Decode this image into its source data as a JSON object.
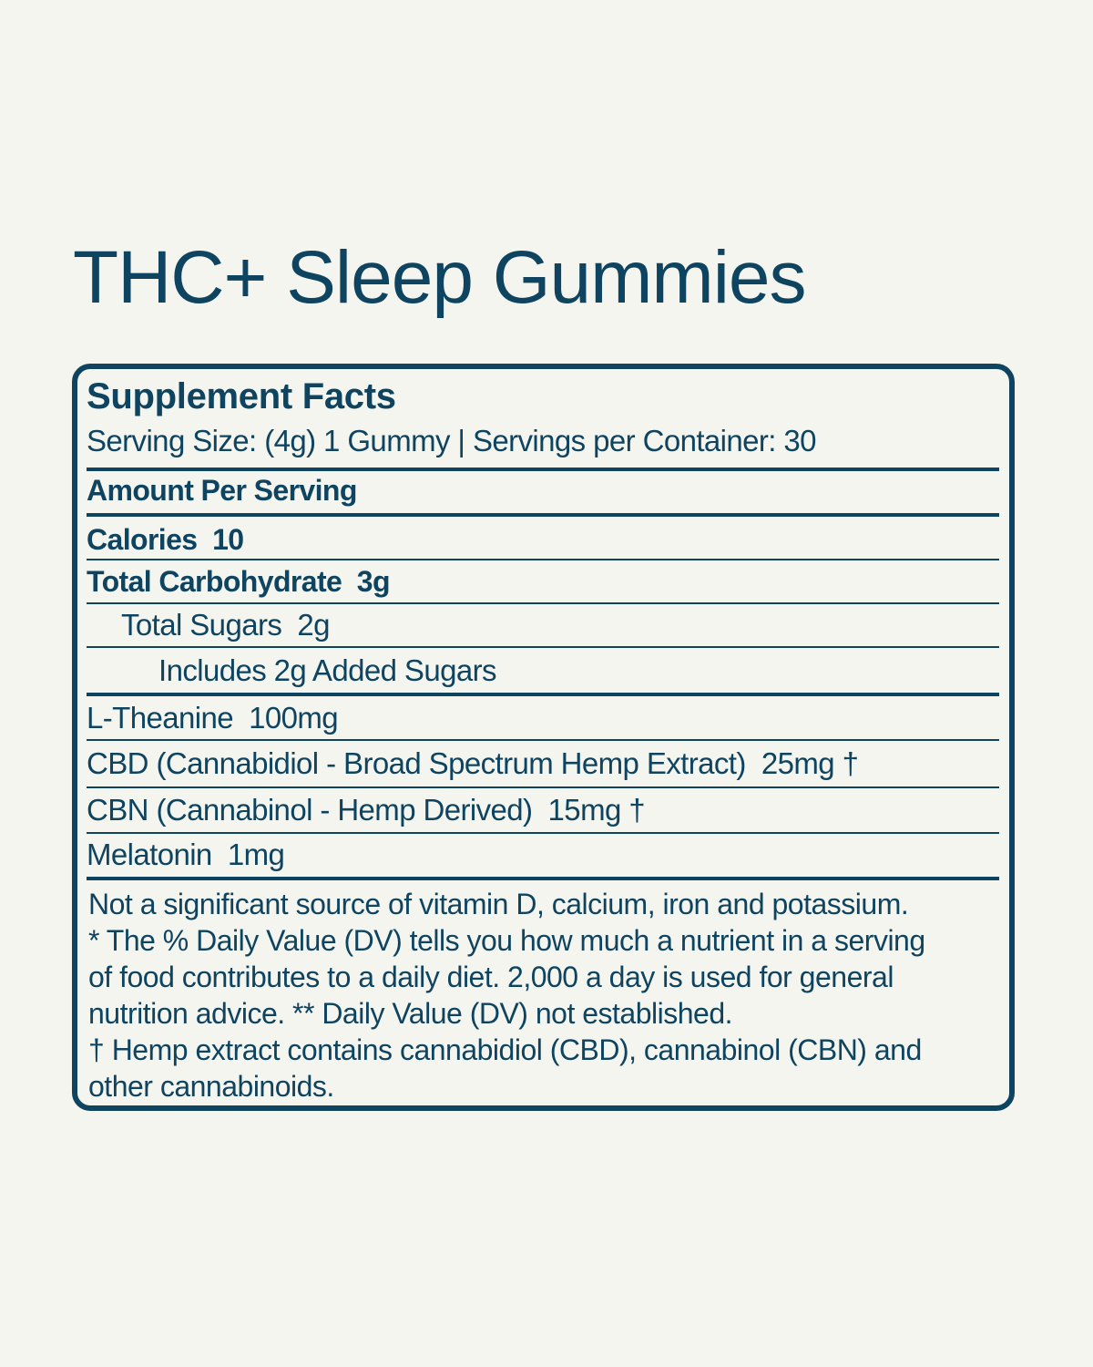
{
  "title": "THC+ Sleep Gummies",
  "facts": {
    "heading": "Supplement Facts",
    "serving": "Serving Size: (4g) 1 Gummy | Servings per Container: 30",
    "amount_per_serving": "Amount Per Serving",
    "rows": [
      "Calories  10",
      "Total Carbohydrate  3g",
      "Total Sugars  2g",
      "Includes 2g Added Sugars",
      "L-Theanine  100mg",
      "CBD (Cannabidiol - Broad Spectrum Hemp Extract)  25mg †",
      "CBN (Cannabinol - Hemp Derived)  15mg †",
      "Melatonin  1mg"
    ],
    "footnotes": [
      "Not a significant source of vitamin D, calcium, iron and potassium.",
      "* The % Daily Value (DV) tells you how much a nutrient in a serving",
      "of food contributes to a daily diet. 2,000 a day is used for general",
      "nutrition advice.  ** Daily Value (DV) not established.",
      "† Hemp extract contains cannabidiol (CBD), cannabinol (CBN) and",
      "other cannabinoids."
    ]
  },
  "colors": {
    "text": "#0f4460",
    "background": "#f5f5f0"
  }
}
